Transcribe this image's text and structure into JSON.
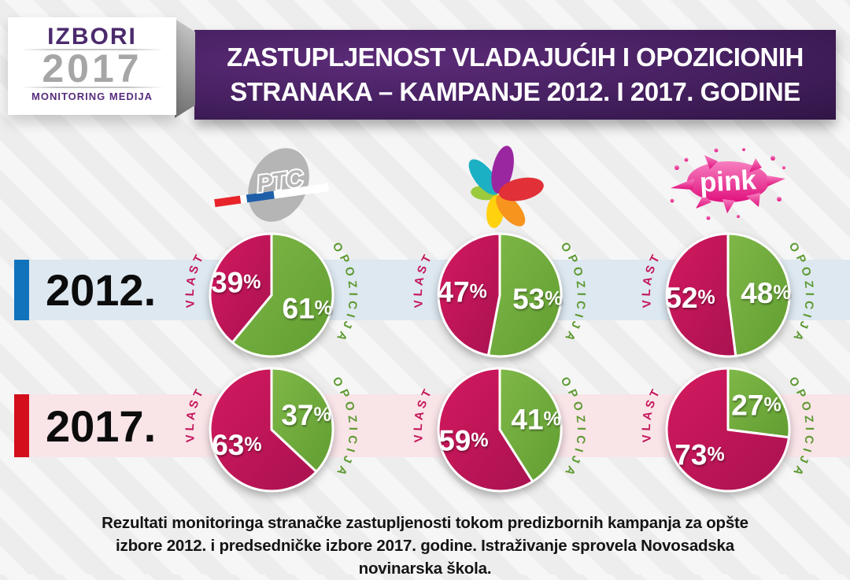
{
  "header": {
    "logo": {
      "line1": "IZBORI",
      "line2": "2017",
      "line3": "MONITORING MEDIJA"
    },
    "title_line1": "ZASTUPLJENOST VLADAJUĆIH I OPOZICIONIH",
    "title_line2": "STRANAKA – KAMPANJE 2012. I 2017. GODINE"
  },
  "channels": [
    {
      "name": "RTS",
      "logo_text": "РТС"
    },
    {
      "name": "Prva",
      "logo_text": ""
    },
    {
      "name": "Pink",
      "logo_text": "pink"
    }
  ],
  "legend": {
    "government_label": "VLAST",
    "opposition_label": "OPOZICIJA"
  },
  "colors": {
    "government": "#c4165a",
    "opposition": "#72ad3c",
    "row2012_accent": "#1273bd",
    "row2012_band": "#dde8f1",
    "row2017_accent": "#d30f1b",
    "row2017_band": "#f9e4e8",
    "banner_purple": "#452060"
  },
  "rows": [
    {
      "year": "2012.",
      "pies": [
        {
          "channel": "RTS",
          "vlast": 39,
          "opozicija": 61
        },
        {
          "channel": "Prva",
          "vlast": 47,
          "opozicija": 53
        },
        {
          "channel": "Pink",
          "vlast": 52,
          "opozicija": 48
        }
      ]
    },
    {
      "year": "2017.",
      "pies": [
        {
          "channel": "RTS",
          "vlast": 63,
          "opozicija": 37
        },
        {
          "channel": "Prva",
          "vlast": 59,
          "opozicija": 41
        },
        {
          "channel": "Pink",
          "vlast": 73,
          "opozicija": 27
        }
      ]
    }
  ],
  "footer": {
    "caption": "Rezultati monitoringa stranačke zastupljenosti tokom predizbornih kampanja za opšte izbore 2012. i predsedničke izbore 2017. godine. Istraživanje sprovela Novosadska novinarska škola."
  },
  "chart_data": [
    {
      "type": "pie",
      "title": "RTS — kampanja 2012.",
      "labels": [
        "VLAST",
        "OPOZICIJA"
      ],
      "values": [
        39,
        61
      ],
      "colors": [
        "#c4165a",
        "#72ad3c"
      ],
      "legend_position": "around-pie"
    },
    {
      "type": "pie",
      "title": "Prva — kampanja 2012.",
      "labels": [
        "VLAST",
        "OPOZICIJA"
      ],
      "values": [
        47,
        53
      ],
      "colors": [
        "#c4165a",
        "#72ad3c"
      ],
      "legend_position": "around-pie"
    },
    {
      "type": "pie",
      "title": "Pink — kampanja 2012.",
      "labels": [
        "VLAST",
        "OPOZICIJA"
      ],
      "values": [
        52,
        48
      ],
      "colors": [
        "#c4165a",
        "#72ad3c"
      ],
      "legend_position": "around-pie"
    },
    {
      "type": "pie",
      "title": "RTS — kampanja 2017.",
      "labels": [
        "VLAST",
        "OPOZICIJA"
      ],
      "values": [
        63,
        37
      ],
      "colors": [
        "#c4165a",
        "#72ad3c"
      ],
      "legend_position": "around-pie"
    },
    {
      "type": "pie",
      "title": "Prva — kampanja 2017.",
      "labels": [
        "VLAST",
        "OPOZICIJA"
      ],
      "values": [
        59,
        41
      ],
      "colors": [
        "#c4165a",
        "#72ad3c"
      ],
      "legend_position": "around-pie"
    },
    {
      "type": "pie",
      "title": "Pink — kampanja 2017.",
      "labels": [
        "VLAST",
        "OPOZICIJA"
      ],
      "values": [
        73,
        27
      ],
      "colors": [
        "#c4165a",
        "#72ad3c"
      ],
      "legend_position": "around-pie"
    }
  ]
}
